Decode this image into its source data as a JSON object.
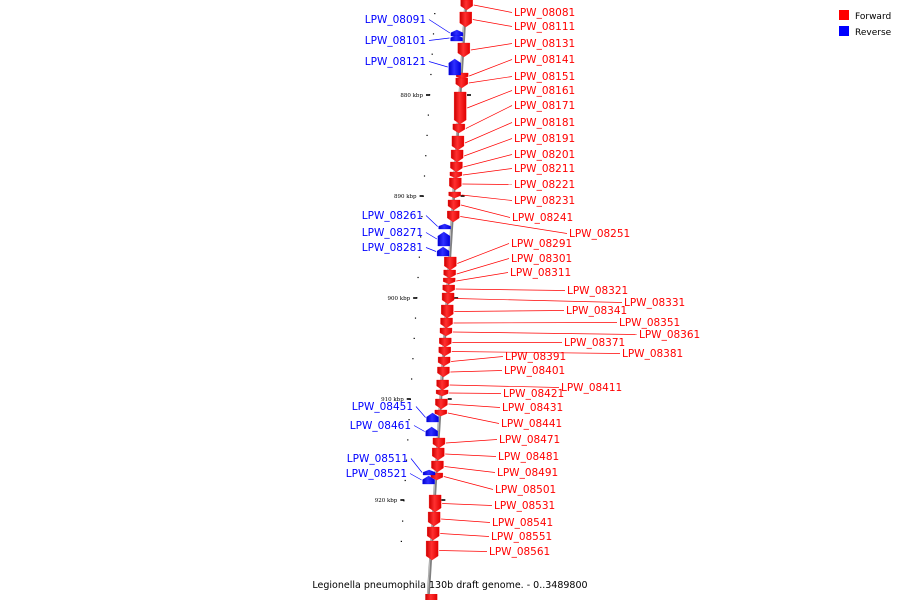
{
  "caption": "Legionella pneumophila 130b draft genome. - 0..3489800",
  "legend": [
    {
      "label": "Forward",
      "color": "#ff0000"
    },
    {
      "label": "Reverse",
      "color": "#0000ff"
    }
  ],
  "colors": {
    "forward": "#ff0000",
    "reverse": "#0000ff",
    "axis": "#808080"
  },
  "ticks": [
    "880 kbp",
    "890 kbp",
    "900 kbp",
    "910 kbp",
    "920 kbp"
  ],
  "genes": {
    "reverse": [
      "LPW_08091",
      "LPW_08101",
      "LPW_08121",
      "LPW_08261",
      "LPW_08271",
      "LPW_08281",
      "LPW_08451",
      "LPW_08461",
      "LPW_08511",
      "LPW_08521"
    ],
    "forward": [
      "LPW_08081",
      "LPW_08111",
      "LPW_08131",
      "LPW_08141",
      "LPW_08151",
      "LPW_08161",
      "LPW_08171",
      "LPW_08181",
      "LPW_08191",
      "LPW_08201",
      "LPW_08211",
      "LPW_08221",
      "LPW_08231",
      "LPW_08241",
      "LPW_08251",
      "LPW_08291",
      "LPW_08301",
      "LPW_08311",
      "LPW_08321",
      "LPW_08331",
      "LPW_08341",
      "LPW_08351",
      "LPW_08361",
      "LPW_08371",
      "LPW_08381",
      "LPW_08391",
      "LPW_08401",
      "LPW_08411",
      "LPW_08421",
      "LPW_08431",
      "LPW_08441",
      "LPW_08471",
      "LPW_08481",
      "LPW_08491",
      "LPW_08501",
      "LPW_08531",
      "LPW_08541",
      "LPW_08551",
      "LPW_08561"
    ]
  }
}
